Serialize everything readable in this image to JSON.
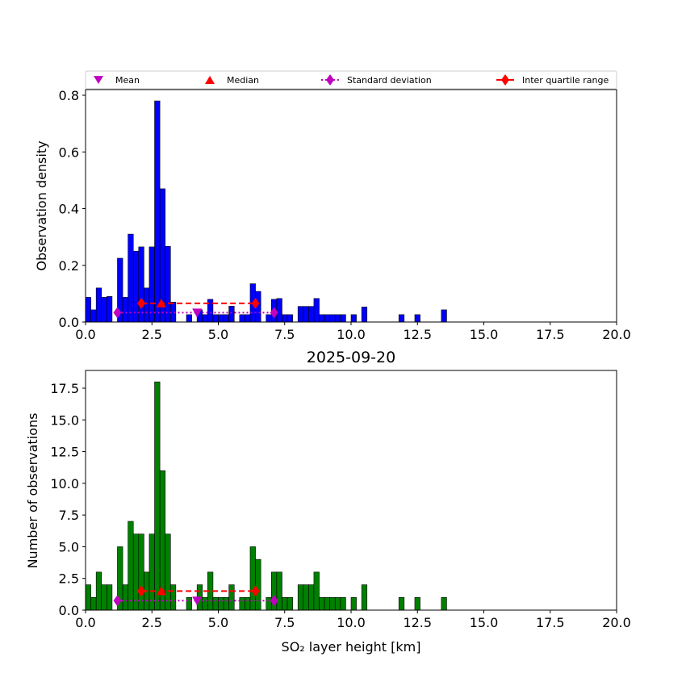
{
  "legend": {
    "mean": "Mean",
    "median": "Median",
    "std": "Standard deviation",
    "iqr": "Inter quartile range"
  },
  "colors": {
    "top_bars": "#0000ff",
    "bottom_bars": "#008000",
    "mean_marker": "#bf00bf",
    "median_marker": "#ff0000",
    "std_line": "#bf00bf",
    "iqr_line": "#ff0000"
  },
  "chart_data": [
    {
      "type": "bar",
      "title": "",
      "xlabel": "",
      "ylabel": "Observation density",
      "xlim": [
        0,
        20
      ],
      "ylim": [
        0,
        0.82
      ],
      "xticks": [
        "0.0",
        "2.5",
        "5.0",
        "7.5",
        "10.0",
        "12.5",
        "15.0",
        "17.5",
        "20.0"
      ],
      "yticks": [
        "0.0",
        "0.2",
        "0.4",
        "0.6",
        "0.8"
      ],
      "bin_width": 0.2,
      "bins": [
        {
          "x": 0.0,
          "v": 0.087
        },
        {
          "x": 0.2,
          "v": 0.043
        },
        {
          "x": 0.4,
          "v": 0.12
        },
        {
          "x": 0.6,
          "v": 0.087
        },
        {
          "x": 0.8,
          "v": 0.09
        },
        {
          "x": 1.2,
          "v": 0.225
        },
        {
          "x": 1.4,
          "v": 0.087
        },
        {
          "x": 1.6,
          "v": 0.31
        },
        {
          "x": 1.8,
          "v": 0.25
        },
        {
          "x": 2.0,
          "v": 0.265
        },
        {
          "x": 2.2,
          "v": 0.12
        },
        {
          "x": 2.4,
          "v": 0.265
        },
        {
          "x": 2.6,
          "v": 0.78
        },
        {
          "x": 2.8,
          "v": 0.47
        },
        {
          "x": 3.0,
          "v": 0.267
        },
        {
          "x": 3.2,
          "v": 0.07
        },
        {
          "x": 3.8,
          "v": 0.026
        },
        {
          "x": 4.2,
          "v": 0.043
        },
        {
          "x": 4.4,
          "v": 0.026
        },
        {
          "x": 4.6,
          "v": 0.08
        },
        {
          "x": 4.8,
          "v": 0.026
        },
        {
          "x": 5.0,
          "v": 0.026
        },
        {
          "x": 5.2,
          "v": 0.026
        },
        {
          "x": 5.4,
          "v": 0.056
        },
        {
          "x": 5.8,
          "v": 0.026
        },
        {
          "x": 6.0,
          "v": 0.026
        },
        {
          "x": 6.2,
          "v": 0.135
        },
        {
          "x": 6.4,
          "v": 0.108
        },
        {
          "x": 6.8,
          "v": 0.026
        },
        {
          "x": 7.0,
          "v": 0.08
        },
        {
          "x": 7.2,
          "v": 0.083
        },
        {
          "x": 7.4,
          "v": 0.026
        },
        {
          "x": 7.6,
          "v": 0.026
        },
        {
          "x": 8.0,
          "v": 0.055
        },
        {
          "x": 8.2,
          "v": 0.055
        },
        {
          "x": 8.4,
          "v": 0.055
        },
        {
          "x": 8.6,
          "v": 0.083
        },
        {
          "x": 8.8,
          "v": 0.026
        },
        {
          "x": 9.0,
          "v": 0.026
        },
        {
          "x": 9.2,
          "v": 0.026
        },
        {
          "x": 9.4,
          "v": 0.026
        },
        {
          "x": 9.6,
          "v": 0.026
        },
        {
          "x": 10.0,
          "v": 0.026
        },
        {
          "x": 10.4,
          "v": 0.053
        },
        {
          "x": 11.8,
          "v": 0.026
        },
        {
          "x": 12.4,
          "v": 0.026
        },
        {
          "x": 13.4,
          "v": 0.043
        }
      ],
      "stats": {
        "mean": {
          "x": 4.2,
          "y": 0.033
        },
        "median": {
          "x": 2.85,
          "y": 0.066
        },
        "std": {
          "x": [
            1.2,
            7.1
          ],
          "y": 0.033
        },
        "iqr": {
          "x": [
            2.1,
            6.4
          ],
          "y": 0.066
        }
      }
    },
    {
      "type": "bar",
      "title": "2025-09-20",
      "xlabel": "SO₂ layer height [km]",
      "ylabel": "Number of observations",
      "xlim": [
        0,
        20
      ],
      "ylim": [
        0,
        18.9
      ],
      "xticks": [
        "0.0",
        "2.5",
        "5.0",
        "7.5",
        "10.0",
        "12.5",
        "15.0",
        "17.5",
        "20.0"
      ],
      "yticks": [
        "0.0",
        "2.5",
        "5.0",
        "7.5",
        "10.0",
        "12.5",
        "15.0",
        "17.5"
      ],
      "bin_width": 0.2,
      "bins": [
        {
          "x": 0.0,
          "v": 2
        },
        {
          "x": 0.2,
          "v": 1
        },
        {
          "x": 0.4,
          "v": 3
        },
        {
          "x": 0.6,
          "v": 2
        },
        {
          "x": 0.8,
          "v": 2
        },
        {
          "x": 1.2,
          "v": 5
        },
        {
          "x": 1.4,
          "v": 2
        },
        {
          "x": 1.6,
          "v": 7
        },
        {
          "x": 1.8,
          "v": 6
        },
        {
          "x": 2.0,
          "v": 6
        },
        {
          "x": 2.2,
          "v": 3
        },
        {
          "x": 2.4,
          "v": 6
        },
        {
          "x": 2.6,
          "v": 18
        },
        {
          "x": 2.8,
          "v": 11
        },
        {
          "x": 3.0,
          "v": 6
        },
        {
          "x": 3.2,
          "v": 2
        },
        {
          "x": 3.8,
          "v": 1
        },
        {
          "x": 4.2,
          "v": 2
        },
        {
          "x": 4.4,
          "v": 1
        },
        {
          "x": 4.6,
          "v": 3
        },
        {
          "x": 4.8,
          "v": 1
        },
        {
          "x": 5.0,
          "v": 1
        },
        {
          "x": 5.2,
          "v": 1
        },
        {
          "x": 5.4,
          "v": 2
        },
        {
          "x": 5.8,
          "v": 1
        },
        {
          "x": 6.0,
          "v": 1
        },
        {
          "x": 6.2,
          "v": 5
        },
        {
          "x": 6.4,
          "v": 4
        },
        {
          "x": 6.8,
          "v": 1
        },
        {
          "x": 7.0,
          "v": 3
        },
        {
          "x": 7.2,
          "v": 3
        },
        {
          "x": 7.4,
          "v": 1
        },
        {
          "x": 7.6,
          "v": 1
        },
        {
          "x": 8.0,
          "v": 2
        },
        {
          "x": 8.2,
          "v": 2
        },
        {
          "x": 8.4,
          "v": 2
        },
        {
          "x": 8.6,
          "v": 3
        },
        {
          "x": 8.8,
          "v": 1
        },
        {
          "x": 9.0,
          "v": 1
        },
        {
          "x": 9.2,
          "v": 1
        },
        {
          "x": 9.4,
          "v": 1
        },
        {
          "x": 9.6,
          "v": 1
        },
        {
          "x": 10.0,
          "v": 1
        },
        {
          "x": 10.4,
          "v": 2
        },
        {
          "x": 11.8,
          "v": 1
        },
        {
          "x": 12.4,
          "v": 1
        },
        {
          "x": 13.4,
          "v": 1
        }
      ],
      "stats": {
        "mean": {
          "x": 4.2,
          "y": 0.75
        },
        "median": {
          "x": 2.85,
          "y": 1.5
        },
        "std": {
          "x": [
            1.2,
            7.1
          ],
          "y": 0.75
        },
        "iqr": {
          "x": [
            2.1,
            6.4
          ],
          "y": 1.5
        }
      }
    }
  ]
}
